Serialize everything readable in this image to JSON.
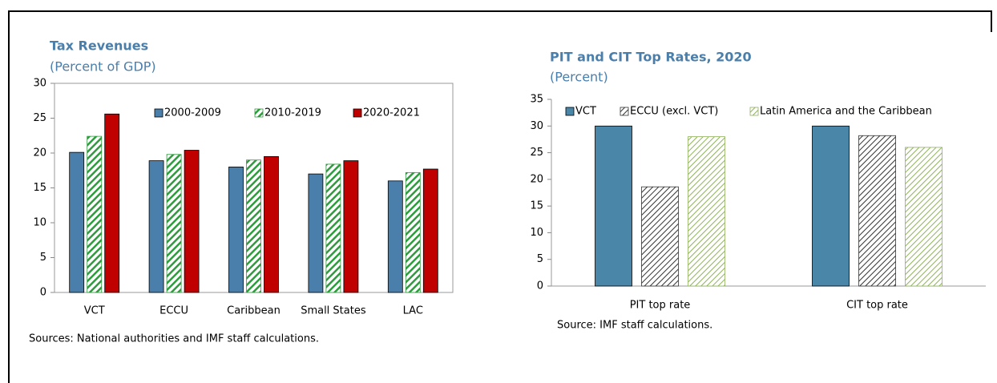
{
  "chart_data": [
    {
      "type": "bar",
      "title": "Tax Revenues",
      "subtitle": "(Percent of GDP)",
      "categories": [
        "VCT",
        "ECCU",
        "Caribbean",
        "Small States",
        "LAC"
      ],
      "series": [
        {
          "name": "2000-2009",
          "color": "#4a7eab",
          "hatch": false,
          "values": [
            20.1,
            18.9,
            18.0,
            17.0,
            16.0
          ]
        },
        {
          "name": "2010-2019",
          "color": "#2f9a3e",
          "hatch": true,
          "values": [
            22.4,
            19.8,
            19.0,
            18.4,
            17.2
          ]
        },
        {
          "name": "2020-2021",
          "color": "#c00000",
          "hatch": false,
          "values": [
            25.6,
            20.4,
            19.5,
            18.9,
            17.7
          ]
        }
      ],
      "ylim": [
        0,
        30
      ],
      "yticks": [
        0,
        5,
        10,
        15,
        20,
        25,
        30
      ],
      "grid": false,
      "source": "Sources: National authorities and IMF staff calculations."
    },
    {
      "type": "bar",
      "title": "PIT and CIT Top Rates, 2020",
      "subtitle": "(Percent)",
      "categories": [
        "PIT top rate",
        "CIT top rate"
      ],
      "series": [
        {
          "name": "VCT",
          "color": "#4a86a8",
          "hatch": false,
          "values": [
            30,
            30
          ]
        },
        {
          "name": "ECCU (excl. VCT)",
          "color": "#333333",
          "hatch": true,
          "values": [
            18.6,
            28.2
          ]
        },
        {
          "name": "Latin America and the Caribbean",
          "color": "#8fb25a",
          "hatch": true,
          "values": [
            28,
            26
          ]
        }
      ],
      "ylim": [
        0,
        35
      ],
      "yticks": [
        0,
        5,
        10,
        15,
        20,
        25,
        30,
        35
      ],
      "grid": false,
      "source": "Source: IMF staff calculations."
    }
  ]
}
